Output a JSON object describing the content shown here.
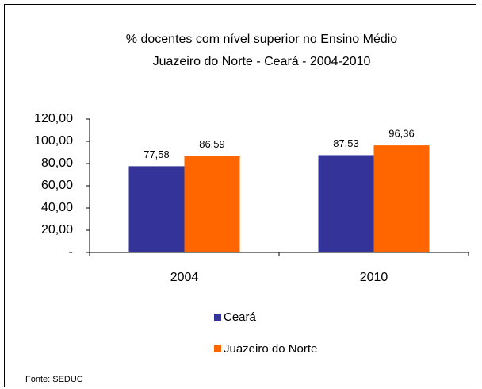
{
  "chart_data": {
    "type": "bar",
    "title": [
      "% docentes com nível superior no Ensino Médio",
      "Juazeiro do Norte -  Ceará - 2004-2010"
    ],
    "categories": [
      "2004",
      "2010"
    ],
    "series": [
      {
        "name": "Ceará",
        "color": "#333399",
        "values": [
          77.58,
          87.53
        ],
        "value_labels": [
          "77,58",
          "87,53"
        ]
      },
      {
        "name": "Juazeiro do Norte",
        "color": "#ff6600",
        "values": [
          86.59,
          96.36
        ],
        "value_labels": [
          "86,59",
          "96,36"
        ]
      }
    ],
    "ylim": [
      0,
      120
    ],
    "yticks": [
      {
        "value": 0,
        "label": "-"
      },
      {
        "value": 20,
        "label": "20,00"
      },
      {
        "value": 40,
        "label": "40,00"
      },
      {
        "value": 60,
        "label": "60,00"
      },
      {
        "value": 80,
        "label": "80,00"
      },
      {
        "value": 100,
        "label": "100,00"
      },
      {
        "value": 120,
        "label": "120,00"
      }
    ],
    "legend": "bottom",
    "source": "Fonte: SEDUC"
  }
}
